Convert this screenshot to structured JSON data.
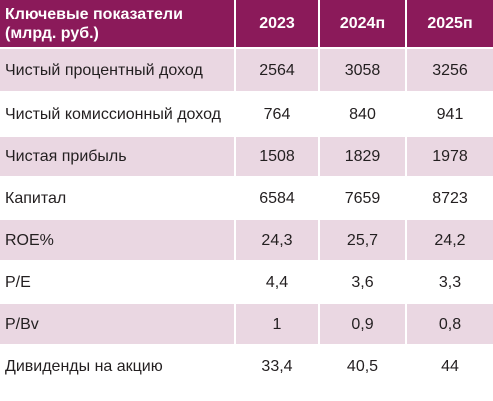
{
  "table": {
    "headers": [
      "Ключевые показатели (млрд. руб.)",
      "2023",
      "2024п",
      "2025п"
    ],
    "rows": [
      {
        "label": "Чистый процентный доход",
        "values": [
          "2564",
          "3058",
          "3256"
        ]
      },
      {
        "label": "Чистый комиссионный доход",
        "values": [
          "764",
          "840",
          "941"
        ]
      },
      {
        "label": "Чистая прибыль",
        "values": [
          "1508",
          "1829",
          "1978"
        ]
      },
      {
        "label": "Капитал",
        "values": [
          "6584",
          "7659",
          "8723"
        ]
      },
      {
        "label": "ROE%",
        "values": [
          "24,3",
          "25,7",
          "24,2"
        ]
      },
      {
        "label": "P/E",
        "values": [
          "4,4",
          "3,6",
          "3,3"
        ]
      },
      {
        "label": "P/Bv",
        "values": [
          "1",
          "0,9",
          "0,8"
        ]
      },
      {
        "label": "Дивиденды на акцию",
        "values": [
          "33,4",
          "40,5",
          "44"
        ]
      }
    ]
  },
  "colors": {
    "header_bg": "#8b1a5a",
    "header_text": "#ffffff",
    "stripe_bg": "#ead7e2",
    "text": "#231f20"
  }
}
